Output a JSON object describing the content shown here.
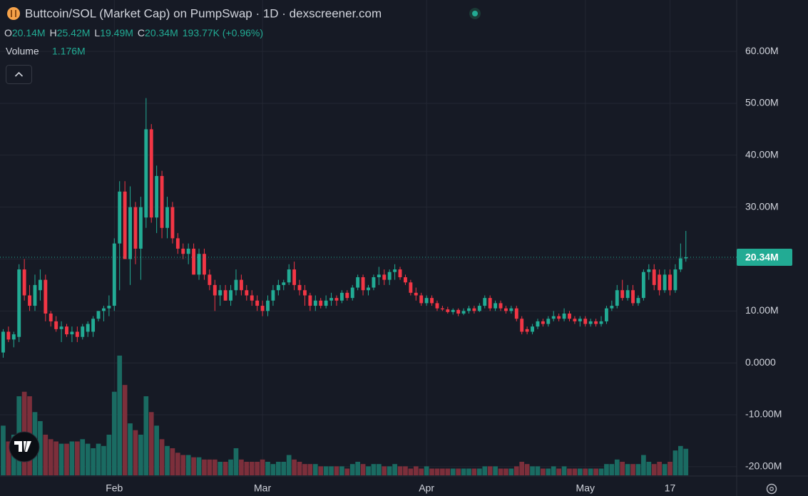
{
  "chart_data": {
    "type": "candlestick",
    "title": "Buttcoin/SOL (Market Cap) on PumpSwap · 1D · dexscreener.com",
    "legend": [
      {
        "key": "O",
        "value": "20.14M"
      },
      {
        "key": "H",
        "value": "25.42M"
      },
      {
        "key": "L",
        "value": "19.49M"
      },
      {
        "key": "C",
        "value": "20.34M"
      }
    ],
    "change": "193.77K (+0.96%)",
    "up_color": "#22ab94",
    "down_color": "#f23645",
    "ylim": [
      -21.8,
      69.9
    ],
    "yticks": [
      {
        "value": 60,
        "label": "60.00M"
      },
      {
        "value": 50,
        "label": "50.00M"
      },
      {
        "value": 40,
        "label": "40.00M"
      },
      {
        "value": 30,
        "label": "30.00M"
      },
      {
        "value": 20,
        "label": "20.00M"
      },
      {
        "value": 10,
        "label": "10.00M"
      },
      {
        "value": 0,
        "label": "0.0000"
      },
      {
        "value": -10,
        "label": "-10.00M"
      },
      {
        "value": -20,
        "label": "-20.00M"
      }
    ],
    "xlim": [
      -0.6,
      138.6
    ],
    "xticks": [
      {
        "value": 21,
        "label": "Feb"
      },
      {
        "value": 49,
        "label": "Mar"
      },
      {
        "value": 80,
        "label": "Apr"
      },
      {
        "value": 110,
        "label": "May"
      },
      {
        "value": 126,
        "label": "17"
      }
    ],
    "grid": true,
    "last_price_label": "20.34M",
    "ohlc": [
      [
        2,
        6.5,
        1,
        6
      ],
      [
        6,
        7,
        4,
        4.5
      ],
      [
        4.5,
        6,
        3,
        5.5
      ],
      [
        5,
        19,
        4,
        18
      ],
      [
        18,
        20,
        12,
        13
      ],
      [
        13,
        15,
        10,
        11
      ],
      [
        11,
        17,
        10,
        15
      ],
      [
        14,
        18,
        12,
        16
      ],
      [
        16,
        17,
        8,
        9.5
      ],
      [
        9.5,
        10,
        7,
        8
      ],
      [
        8,
        9,
        6,
        6.5
      ],
      [
        6.5,
        8,
        4,
        7
      ],
      [
        7,
        7.5,
        5,
        5.5
      ],
      [
        5.5,
        7,
        4,
        6
      ],
      [
        6,
        7,
        4,
        5
      ],
      [
        5,
        7.5,
        4.5,
        7
      ],
      [
        6,
        8,
        5,
        7.5
      ],
      [
        6,
        9,
        5,
        8.5
      ],
      [
        8.5,
        10,
        8,
        10
      ],
      [
        10,
        11,
        8,
        10.5
      ],
      [
        10.5,
        13,
        9,
        11
      ],
      [
        11,
        24,
        10,
        23
      ],
      [
        23,
        35,
        14,
        33
      ],
      [
        33,
        35,
        20,
        20
      ],
      [
        20,
        34,
        15,
        30
      ],
      [
        30,
        31,
        19,
        22
      ],
      [
        22,
        32,
        16,
        30
      ],
      [
        28,
        51,
        26,
        45
      ],
      [
        45,
        46,
        27,
        28
      ],
      [
        28,
        38,
        25,
        36
      ],
      [
        36,
        37,
        24,
        26
      ],
      [
        26,
        32,
        24,
        30
      ],
      [
        30,
        31,
        23,
        24
      ],
      [
        24,
        25,
        21,
        22
      ],
      [
        22,
        23,
        20,
        21
      ],
      [
        21,
        23,
        19,
        22
      ],
      [
        22,
        23,
        17,
        17
      ],
      [
        17,
        22,
        16,
        21
      ],
      [
        21,
        22,
        16,
        17
      ],
      [
        17,
        18,
        14,
        15
      ],
      [
        15,
        16,
        10,
        13
      ],
      [
        13,
        15,
        11,
        14
      ],
      [
        14,
        15,
        12,
        12
      ],
      [
        12,
        15,
        11,
        14
      ],
      [
        14,
        18,
        13,
        16
      ],
      [
        16,
        17,
        13,
        14
      ],
      [
        14,
        15,
        12,
        13
      ],
      [
        13,
        14,
        11,
        12
      ],
      [
        12,
        13,
        10,
        11
      ],
      [
        11,
        12,
        9,
        10
      ],
      [
        10,
        13,
        9,
        12
      ],
      [
        12,
        15,
        11,
        14
      ],
      [
        14,
        16,
        13,
        15
      ],
      [
        15,
        16,
        14,
        15.5
      ],
      [
        15.5,
        19,
        15,
        18
      ],
      [
        18,
        19.5,
        14,
        15
      ],
      [
        15,
        16,
        13,
        14
      ],
      [
        14,
        15,
        11,
        13
      ],
      [
        13,
        13.5,
        10,
        11
      ],
      [
        11,
        13,
        10,
        12
      ],
      [
        12,
        12.5,
        10.5,
        11
      ],
      [
        11,
        13,
        10.5,
        12
      ],
      [
        12,
        13.5,
        11,
        12.5
      ],
      [
        12.5,
        13,
        11,
        12
      ],
      [
        12,
        14,
        11.5,
        13.5
      ],
      [
        13.5,
        14,
        12,
        12.5
      ],
      [
        12.5,
        15,
        12,
        14.5
      ],
      [
        14.5,
        17,
        14,
        16.5
      ],
      [
        16.5,
        17,
        13,
        14
      ],
      [
        14,
        15,
        13,
        14.5
      ],
      [
        14.5,
        17,
        14,
        16.5
      ],
      [
        16.5,
        18.5,
        15,
        17
      ],
      [
        17,
        18,
        15,
        16
      ],
      [
        16,
        18,
        15,
        17.5
      ],
      [
        17.5,
        19,
        16,
        18
      ],
      [
        18,
        18.5,
        16,
        16.5
      ],
      [
        16.5,
        17,
        15,
        15.5
      ],
      [
        15.5,
        16,
        13,
        13.5
      ],
      [
        13.5,
        14.5,
        12,
        13
      ],
      [
        13,
        13.5,
        11,
        11.5
      ],
      [
        11.5,
        13,
        11,
        12.5
      ],
      [
        12.5,
        13,
        11,
        11.5
      ],
      [
        11.5,
        12,
        10,
        10.5
      ],
      [
        10.5,
        11,
        10,
        10.3
      ],
      [
        10.3,
        10.8,
        9.5,
        9.8
      ],
      [
        9.8,
        10.5,
        9.3,
        10.2
      ],
      [
        10.2,
        10.5,
        9,
        9.5
      ],
      [
        9.5,
        10.5,
        9.2,
        10
      ],
      [
        10,
        11,
        9.5,
        10.5
      ],
      [
        10.5,
        11,
        9.5,
        10
      ],
      [
        10,
        11.5,
        9.8,
        11
      ],
      [
        11,
        13,
        10.5,
        12.5
      ],
      [
        12.5,
        13,
        10,
        10.5
      ],
      [
        10.5,
        12,
        10,
        11.5
      ],
      [
        11.5,
        12,
        10,
        10.5
      ],
      [
        10.5,
        11,
        9.5,
        10
      ],
      [
        10,
        11,
        9.5,
        10.5
      ],
      [
        10.5,
        11,
        8,
        8.5
      ],
      [
        8.5,
        9,
        5.5,
        6
      ],
      [
        6.5,
        7,
        5.5,
        6
      ],
      [
        6,
        7.5,
        5.5,
        7
      ],
      [
        7,
        8.5,
        6.5,
        8
      ],
      [
        8,
        8.5,
        7,
        7.5
      ],
      [
        7.5,
        9,
        7,
        8.5
      ],
      [
        8.5,
        10,
        8,
        9
      ],
      [
        9,
        9.5,
        8,
        8.5
      ],
      [
        8.5,
        10.5,
        8,
        9.5
      ],
      [
        9.5,
        10,
        8,
        8.5
      ],
      [
        8.5,
        9,
        7.5,
        8
      ],
      [
        8,
        9,
        7,
        8.5
      ],
      [
        8.5,
        9,
        7,
        7.5
      ],
      [
        7.5,
        8.5,
        7,
        8
      ],
      [
        8,
        8.5,
        7,
        7.5
      ],
      [
        7.5,
        9,
        7,
        8
      ],
      [
        8,
        11,
        7.5,
        10.5
      ],
      [
        10.5,
        12,
        10,
        11
      ],
      [
        11,
        15,
        10.5,
        14
      ],
      [
        14,
        16,
        12,
        12.5
      ],
      [
        12.5,
        15,
        12,
        14
      ],
      [
        14,
        15,
        11,
        11.5
      ],
      [
        11.5,
        13,
        11,
        12.5
      ],
      [
        12.5,
        18,
        12,
        17.5
      ],
      [
        17.5,
        19,
        16,
        18
      ],
      [
        18,
        19,
        14,
        15
      ],
      [
        17,
        18,
        13,
        14
      ],
      [
        14,
        18,
        13.5,
        17
      ],
      [
        17,
        18,
        13,
        14
      ],
      [
        14,
        19,
        13.5,
        18
      ],
      [
        18,
        23,
        17.5,
        20.14
      ],
      [
        20.14,
        25.42,
        19.49,
        20.34
      ]
    ],
    "volume": {
      "name": "Volume",
      "up_color": "#1a6b62",
      "down_color": "#7c2f3b",
      "values": [
        2200000,
        1500000,
        1800000,
        3500000,
        3700000,
        3500000,
        2800000,
        2400000,
        1800000,
        1600000,
        1500000,
        1400000,
        1400000,
        1500000,
        1500000,
        1600000,
        1400000,
        1200000,
        1400000,
        1300000,
        1800000,
        3700000,
        5300000,
        4000000,
        2300000,
        2000000,
        1800000,
        3500000,
        2800000,
        2200000,
        1600000,
        1300000,
        1200000,
        1000000,
        900000,
        900000,
        800000,
        800000,
        700000,
        700000,
        700000,
        600000,
        600000,
        700000,
        1200000,
        700000,
        600000,
        600000,
        600000,
        700000,
        600000,
        500000,
        600000,
        600000,
        900000,
        700000,
        600000,
        500000,
        500000,
        500000,
        400000,
        400000,
        400000,
        400000,
        400000,
        300000,
        500000,
        600000,
        500000,
        400000,
        500000,
        500000,
        400000,
        400000,
        500000,
        400000,
        400000,
        300000,
        400000,
        300000,
        400000,
        300000,
        300000,
        300000,
        300000,
        300000,
        300000,
        300000,
        300000,
        300000,
        300000,
        400000,
        400000,
        400000,
        300000,
        300000,
        300000,
        400000,
        600000,
        500000,
        400000,
        400000,
        300000,
        300000,
        400000,
        300000,
        400000,
        300000,
        300000,
        300000,
        300000,
        300000,
        300000,
        300000,
        500000,
        500000,
        700000,
        600000,
        500000,
        500000,
        500000,
        900000,
        600000,
        500000,
        600000,
        500000,
        600000,
        1100000,
        1300000,
        1176000
      ],
      "value_labels": [
        null,
        null,
        null,
        null,
        null,
        null,
        null,
        null,
        null,
        null,
        null,
        null,
        null,
        null,
        null,
        null,
        null,
        null,
        null,
        null,
        null,
        null,
        null,
        null,
        null,
        null,
        null,
        null,
        null,
        null,
        null,
        null,
        null,
        null,
        null,
        null,
        null,
        null,
        null,
        null,
        null,
        null,
        null,
        null,
        null,
        null,
        null,
        null,
        null,
        null,
        null,
        null,
        null,
        null,
        null,
        null,
        null,
        null,
        null,
        null,
        null,
        null,
        null,
        null,
        null,
        null,
        null,
        null,
        null,
        null,
        null,
        null,
        null,
        null,
        null,
        null,
        null,
        null,
        null,
        null,
        null,
        null,
        null,
        null,
        null,
        null,
        null,
        null,
        null,
        null,
        null,
        null,
        null,
        null,
        null,
        null,
        null,
        null,
        null,
        null,
        null,
        null,
        null,
        null,
        null,
        null,
        null,
        null,
        null,
        null,
        null,
        null,
        null,
        null,
        null,
        null,
        null,
        null,
        null,
        null,
        null,
        null,
        null,
        null,
        null,
        null,
        null,
        null,
        null,
        "1.176M"
      ]
    }
  }
}
